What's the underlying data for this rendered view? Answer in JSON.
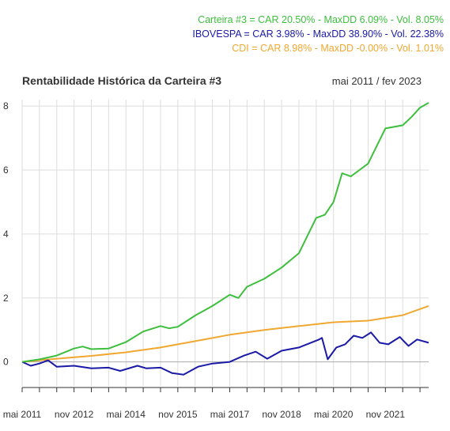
{
  "legend": {
    "portfolio": {
      "text": "Carteira #3 = CAR 20.50% - MaxDD 6.09% - Vol. 8.05%",
      "color": "#3dbf3d"
    },
    "ibovespa": {
      "text": "IBOVESPA = CAR 3.98% - MaxDD 38.90% - Vol. 22.38%",
      "color": "#1a1aa6"
    },
    "cdi": {
      "text": "CDI = CAR 8.98% - MaxDD -0.00% - Vol. 1.01%",
      "color": "#f0a830"
    }
  },
  "chart_data": {
    "type": "line",
    "title": "Rentabilidade Histórica da Carteira #3",
    "subtitle": "mai 2011 / fev 2023",
    "xlabel": "",
    "ylabel": "",
    "x_range": [
      "2011-05",
      "2023-02"
    ],
    "ylim": [
      -0.8,
      8.2
    ],
    "yticks": [
      0,
      2,
      4,
      6,
      8
    ],
    "xtick_labels": [
      "mai 2011",
      "nov 2012",
      "mai 2014",
      "nov 2015",
      "mai 2017",
      "nov 2018",
      "mai 2020",
      "nov 2021"
    ],
    "grid": true,
    "legend_position": "top-right",
    "series": [
      {
        "name": "Carteira #3",
        "color": "#3dbf3d",
        "points": [
          [
            "2011-05",
            0.0
          ],
          [
            "2011-11",
            0.08
          ],
          [
            "2012-05",
            0.2
          ],
          [
            "2012-11",
            0.42
          ],
          [
            "2013-02",
            0.48
          ],
          [
            "2013-05",
            0.4
          ],
          [
            "2013-11",
            0.42
          ],
          [
            "2014-05",
            0.62
          ],
          [
            "2014-11",
            0.95
          ],
          [
            "2015-05",
            1.12
          ],
          [
            "2015-08",
            1.05
          ],
          [
            "2015-11",
            1.1
          ],
          [
            "2016-05",
            1.45
          ],
          [
            "2016-11",
            1.75
          ],
          [
            "2017-05",
            2.1
          ],
          [
            "2017-08",
            2.0
          ],
          [
            "2017-11",
            2.35
          ],
          [
            "2018-05",
            2.6
          ],
          [
            "2018-11",
            2.95
          ],
          [
            "2019-05",
            3.4
          ],
          [
            "2019-11",
            4.5
          ],
          [
            "2020-02",
            4.6
          ],
          [
            "2020-05",
            5.0
          ],
          [
            "2020-08",
            5.9
          ],
          [
            "2020-11",
            5.8
          ],
          [
            "2021-02",
            6.0
          ],
          [
            "2021-05",
            6.2
          ],
          [
            "2021-08",
            6.75
          ],
          [
            "2021-11",
            7.3
          ],
          [
            "2022-05",
            7.4
          ],
          [
            "2022-08",
            7.65
          ],
          [
            "2022-11",
            7.95
          ],
          [
            "2023-02",
            8.1
          ]
        ]
      },
      {
        "name": "IBOVESPA",
        "color": "#1a1aa6",
        "points": [
          [
            "2011-05",
            0.0
          ],
          [
            "2011-08",
            -0.12
          ],
          [
            "2011-11",
            -0.05
          ],
          [
            "2012-02",
            0.05
          ],
          [
            "2012-05",
            -0.15
          ],
          [
            "2012-11",
            -0.12
          ],
          [
            "2013-05",
            -0.2
          ],
          [
            "2013-11",
            -0.18
          ],
          [
            "2014-03",
            -0.28
          ],
          [
            "2014-09",
            -0.12
          ],
          [
            "2014-12",
            -0.2
          ],
          [
            "2015-05",
            -0.18
          ],
          [
            "2015-09",
            -0.35
          ],
          [
            "2016-01",
            -0.4
          ],
          [
            "2016-06",
            -0.15
          ],
          [
            "2016-11",
            -0.05
          ],
          [
            "2017-05",
            0.0
          ],
          [
            "2017-10",
            0.2
          ],
          [
            "2018-02",
            0.32
          ],
          [
            "2018-06",
            0.1
          ],
          [
            "2018-11",
            0.35
          ],
          [
            "2019-05",
            0.45
          ],
          [
            "2019-12",
            0.7
          ],
          [
            "2020-01",
            0.75
          ],
          [
            "2020-03",
            0.08
          ],
          [
            "2020-06",
            0.45
          ],
          [
            "2020-09",
            0.55
          ],
          [
            "2020-12",
            0.82
          ],
          [
            "2021-03",
            0.75
          ],
          [
            "2021-06",
            0.92
          ],
          [
            "2021-09",
            0.6
          ],
          [
            "2021-12",
            0.55
          ],
          [
            "2022-04",
            0.78
          ],
          [
            "2022-07",
            0.5
          ],
          [
            "2022-10",
            0.7
          ],
          [
            "2023-02",
            0.6
          ]
        ]
      },
      {
        "name": "CDI",
        "color": "#f0a830",
        "points": [
          [
            "2011-05",
            0.0
          ],
          [
            "2012-05",
            0.1
          ],
          [
            "2013-05",
            0.19
          ],
          [
            "2014-05",
            0.3
          ],
          [
            "2015-05",
            0.45
          ],
          [
            "2016-05",
            0.65
          ],
          [
            "2017-05",
            0.85
          ],
          [
            "2018-05",
            1.0
          ],
          [
            "2019-05",
            1.12
          ],
          [
            "2020-05",
            1.24
          ],
          [
            "2021-05",
            1.29
          ],
          [
            "2022-05",
            1.46
          ],
          [
            "2023-02",
            1.75
          ]
        ]
      }
    ]
  }
}
